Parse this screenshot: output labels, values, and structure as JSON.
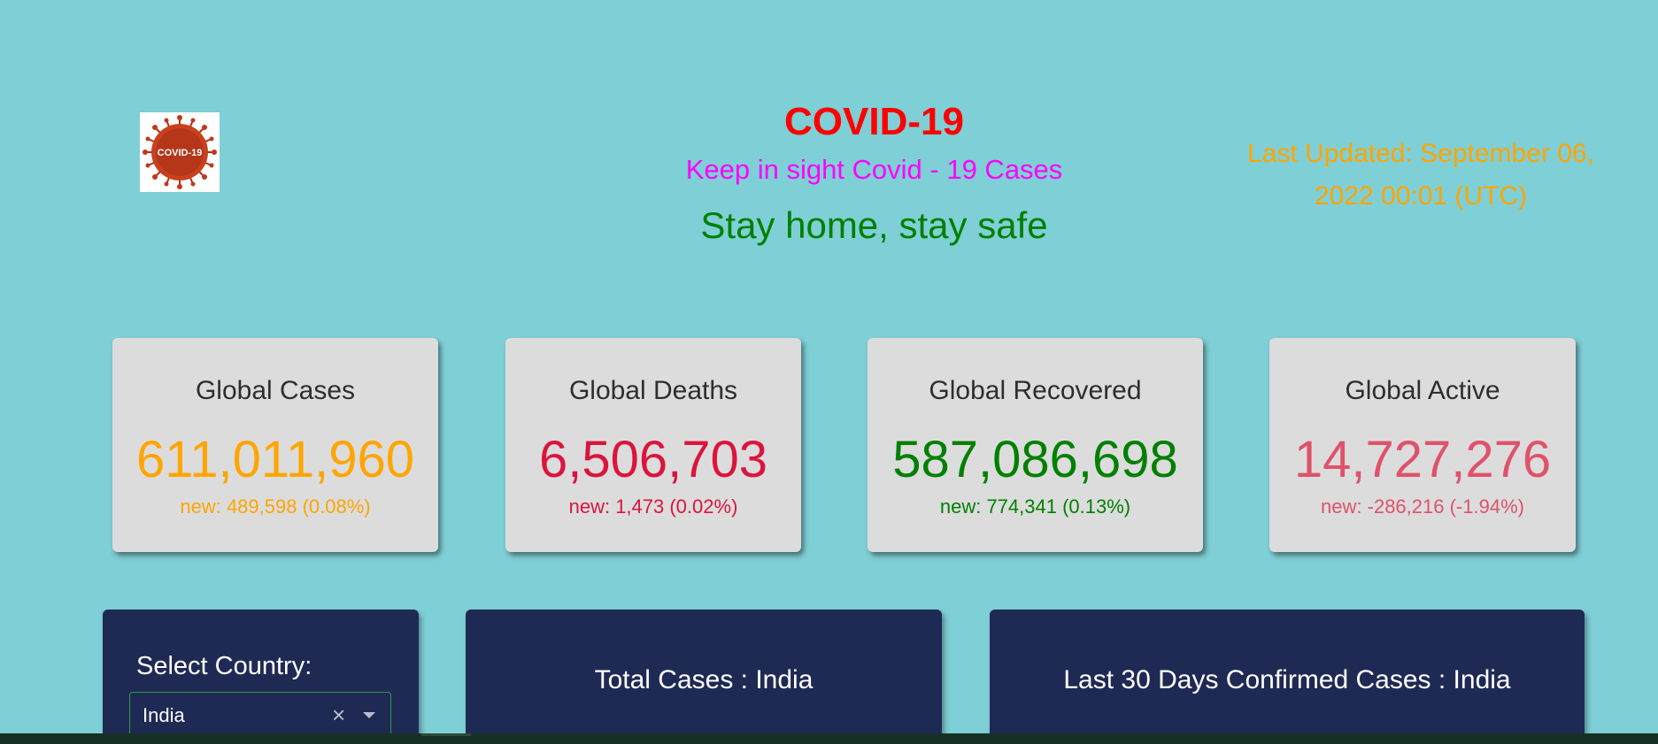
{
  "header": {
    "logo_text": "COVID-19",
    "title": "COVID-19",
    "subtitle": "Keep in sight Covid - 19 Cases",
    "tagline": "Stay home, stay safe",
    "last_updated": "Last Updated: September 06, 2022 00:01 (UTC)"
  },
  "stats": [
    {
      "label": "Global Cases",
      "value": "611,011,960",
      "new": "new: 489,598 (0.08%)"
    },
    {
      "label": "Global Deaths",
      "value": "6,506,703",
      "new": "new: 1,473 (0.02%)"
    },
    {
      "label": "Global Recovered",
      "value": "587,086,698",
      "new": "new: 774,341 (0.13%)"
    },
    {
      "label": "Global Active",
      "value": "14,727,276",
      "new": "new: -286,216 (-1.94%)"
    }
  ],
  "country_select": {
    "label": "Select Country:",
    "selected": "India",
    "clear_glyph": "×"
  },
  "panels": {
    "total_cases": "Total Cases : India",
    "last_30_days": "Last 30 Days Confirmed Cases : India"
  },
  "colors": {
    "background": "#7fcfd6",
    "title": "#ff0000",
    "subtitle": "#ff00ff",
    "tagline": "#008000",
    "last_updated": "#ffa500",
    "cases": "#ffa500",
    "deaths": "#dc143c",
    "recovered": "#008000",
    "active": "#e0526a",
    "panel": "#1f2a54"
  }
}
